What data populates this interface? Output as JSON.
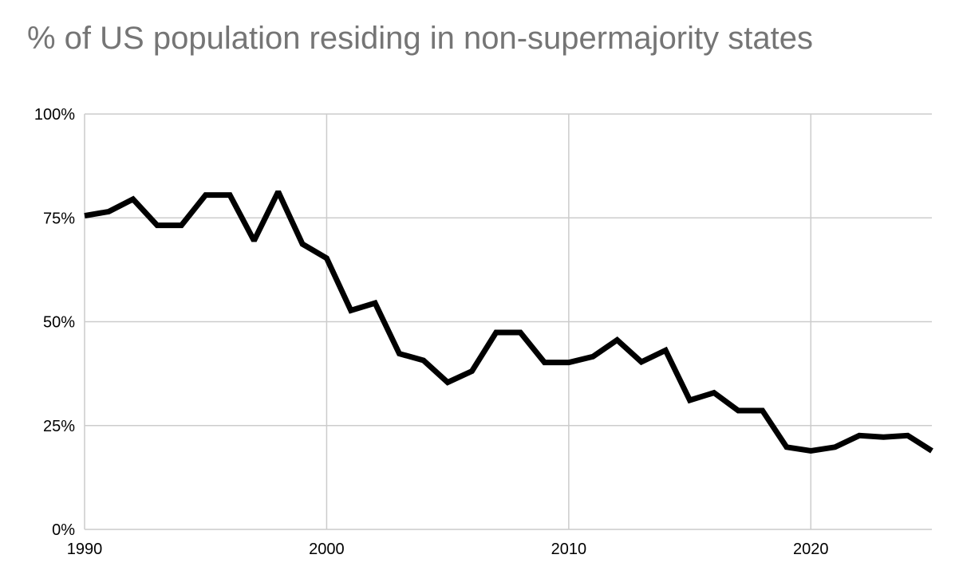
{
  "chart_data": {
    "type": "line",
    "title": "% of US population residing in non-supermajority states",
    "xlabel": "",
    "ylabel": "",
    "xlim": [
      1990,
      2025
    ],
    "ylim": [
      0,
      100
    ],
    "grid": true,
    "legend": "none",
    "x_ticks": [
      1990,
      2000,
      2010,
      2020
    ],
    "x_tick_labels": [
      "1990",
      "2000",
      "2010",
      "2020"
    ],
    "y_ticks": [
      0,
      25,
      50,
      75,
      100
    ],
    "y_tick_labels": [
      "0%",
      "25%",
      "50%",
      "75%",
      "100%"
    ],
    "colors": {
      "line": "#000000",
      "grid": "#cccccc",
      "title": "#757575"
    },
    "series": [
      {
        "x": [
          1990,
          1991,
          1992,
          1993,
          1994,
          1995,
          1996,
          1997,
          1998,
          1999,
          2000,
          2001,
          2002,
          2003,
          2004,
          2005,
          2006,
          2007,
          2008,
          2009,
          2010,
          2011,
          2012,
          2013,
          2014,
          2015,
          2016,
          2017,
          2018,
          2019,
          2020,
          2021,
          2022,
          2023,
          2024,
          2025
        ],
        "values": [
          75.5,
          76.5,
          79.5,
          73.2,
          73.2,
          80.5,
          80.5,
          69.5,
          81.3,
          68.7,
          65.3,
          52.7,
          54.5,
          42.3,
          40.7,
          35.4,
          38.1,
          47.4,
          47.4,
          40.2,
          40.2,
          41.6,
          45.6,
          40.3,
          43.1,
          31.1,
          32.9,
          28.6,
          28.6,
          19.8,
          18.9,
          19.8,
          22.6,
          22.2,
          22.6,
          18.9
        ]
      }
    ]
  }
}
